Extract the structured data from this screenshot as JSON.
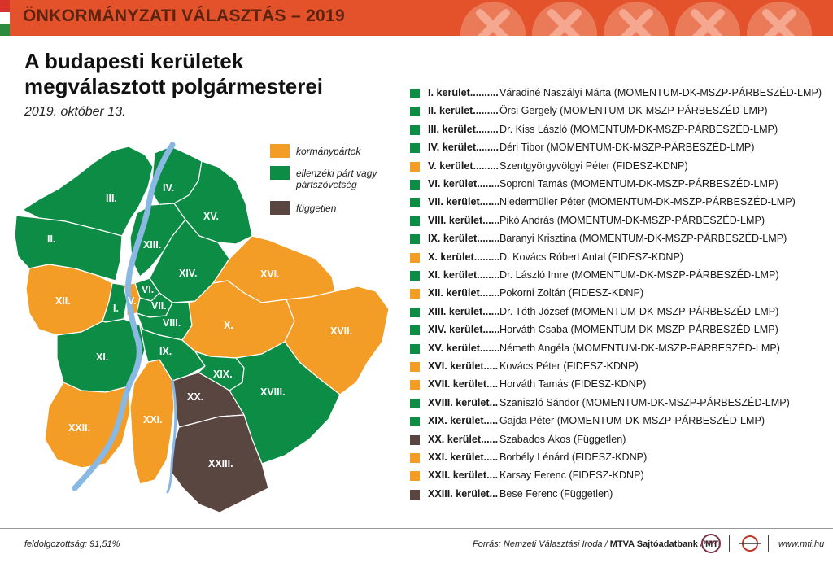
{
  "header": {
    "title": "ÖNKORMÁNYZATI VÁLASZTÁS – 2019"
  },
  "title_lines": [
    "A budapesti kerületek",
    "megválasztott polgármesterei"
  ],
  "date": "2019. október 13.",
  "colors": {
    "govt": "#f39c26",
    "opposition": "#0c8c44",
    "independent": "#5a4640",
    "river": "#89b8e3",
    "header": "#e3522a"
  },
  "legend": [
    {
      "label": "kormánypártok",
      "color": "#f39c26"
    },
    {
      "label": "ellenzéki párt vagy pártszövetség",
      "color": "#0c8c44"
    },
    {
      "label": "független",
      "color": "#5a4640"
    }
  ],
  "districts": [
    {
      "district": "I. kerület",
      "mayor": "Váradiné Naszályi Márta (MOMENTUM-DK-MSZP-PÁRBESZÉD-LMP)",
      "group": "opposition"
    },
    {
      "district": "II. kerület",
      "mayor": "Örsi Gergely (MOMENTUM-DK-MSZP-PÁRBESZÉD-LMP)",
      "group": "opposition"
    },
    {
      "district": "III. kerület",
      "mayor": "Dr. Kiss László (MOMENTUM-DK-MSZP-PÁRBESZÉD-LMP)",
      "group": "opposition"
    },
    {
      "district": "IV. kerület",
      "mayor": "Déri Tibor (MOMENTUM-DK-MSZP-PÁRBESZÉD-LMP)",
      "group": "opposition"
    },
    {
      "district": "V. kerület",
      "mayor": "Szentgyörgyvölgyi Péter (FIDESZ-KDNP)",
      "group": "govt"
    },
    {
      "district": "VI. kerület",
      "mayor": "Soproni Tamás (MOMENTUM-DK-MSZP-PÁRBESZÉD-LMP)",
      "group": "opposition"
    },
    {
      "district": "VII. kerület",
      "mayor": "Niedermüller Péter (MOMENTUM-DK-MSZP-PÁRBESZÉD-LMP)",
      "group": "opposition"
    },
    {
      "district": "VIII. kerület",
      "mayor": "Pikó András (MOMENTUM-DK-MSZP-PÁRBESZÉD-LMP)",
      "group": "opposition"
    },
    {
      "district": "IX. kerület",
      "mayor": "Baranyi Krisztina (MOMENTUM-DK-MSZP-PÁRBESZÉD-LMP)",
      "group": "opposition"
    },
    {
      "district": "X. kerület",
      "mayor": "D. Kovács Róbert Antal (FIDESZ-KDNP)",
      "group": "govt"
    },
    {
      "district": "XI. kerület",
      "mayor": "Dr. László Imre (MOMENTUM-DK-MSZP-PÁRBESZÉD-LMP)",
      "group": "opposition"
    },
    {
      "district": "XII. kerület",
      "mayor": "Pokorni Zoltán (FIDESZ-KDNP)",
      "group": "govt"
    },
    {
      "district": "XIII. kerület",
      "mayor": "Dr. Tóth József (MOMENTUM-DK-MSZP-PÁRBESZÉD-LMP)",
      "group": "opposition"
    },
    {
      "district": "XIV. kerület",
      "mayor": "Horváth Csaba (MOMENTUM-DK-MSZP-PÁRBESZÉD-LMP)",
      "group": "opposition"
    },
    {
      "district": "XV. kerület",
      "mayor": "Németh Angéla (MOMENTUM-DK-MSZP-PÁRBESZÉD-LMP)",
      "group": "opposition"
    },
    {
      "district": "XVI. kerület",
      "mayor": "Kovács Péter (FIDESZ-KDNP)",
      "group": "govt"
    },
    {
      "district": "XVII. kerület",
      "mayor": "Horváth Tamás (FIDESZ-KDNP)",
      "group": "govt"
    },
    {
      "district": "XVIII. kerület",
      "mayor": "Szaniszló Sándor (MOMENTUM-DK-MSZP-PÁRBESZÉD-LMP)",
      "group": "opposition"
    },
    {
      "district": "XIX. kerület",
      "mayor": "Gajda Péter (MOMENTUM-DK-MSZP-PÁRBESZÉD-LMP)",
      "group": "opposition"
    },
    {
      "district": "XX. kerület",
      "mayor": "Szabados Ákos (Független)",
      "group": "independent"
    },
    {
      "district": "XXI. kerület",
      "mayor": "Borbély Lénárd (FIDESZ-KDNP)",
      "group": "govt"
    },
    {
      "district": "XXII. kerület",
      "mayor": "Karsay Ferenc (FIDESZ-KDNP)",
      "group": "govt"
    },
    {
      "district": "XXIII. kerület",
      "mayor": "Bese Ferenc (Független)",
      "group": "independent"
    }
  ],
  "map_labels": [
    "I.",
    "II.",
    "III.",
    "IV.",
    "V.",
    "VI.",
    "VII.",
    "VIII.",
    "IX.",
    "X.",
    "XI.",
    "XII.",
    "XIII.",
    "XIV.",
    "XV.",
    "XVI.",
    "XVII.",
    "XVIII.",
    "XIX.",
    "XX.",
    "XXI.",
    "XXII.",
    "XXIII."
  ],
  "footer": {
    "processed": "feldolgozottság: 91,51%",
    "source_prefix": "Forrás: Nemzeti Választási Iroda /",
    "source_bold": "MTVA Sajtóadatbank",
    "source_sep": "/",
    "source_mti": "MTI",
    "logo1": "MTVA",
    "website": "www.mti.hu"
  }
}
